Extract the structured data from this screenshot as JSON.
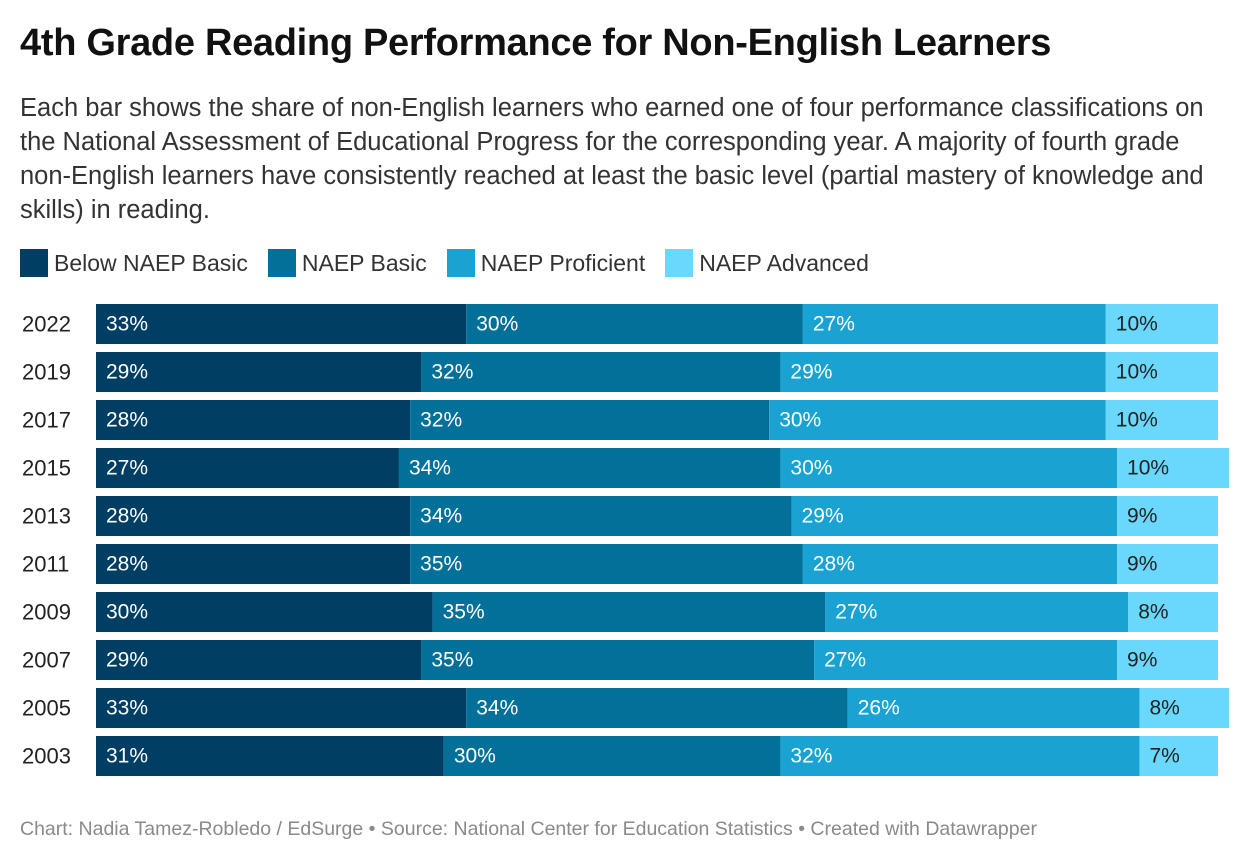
{
  "title": "4th Grade Reading Performance for Non-English Learners",
  "subtitle": "Each bar shows the share of non-English learners who earned one of four performance classifications on the National Assessment of Educational Progress for the corresponding year. A majority of fourth grade non-English learners have consistently reached at least the basic level (partial mastery of knowledge and skills) in reading.",
  "footer": "Chart: Nadia Tamez-Robledo / EdSurge • Source: National Center for Education Statistics • Created with Datawrapper",
  "chart_data": {
    "type": "bar",
    "orientation": "horizontal",
    "stacked": true,
    "normalized": true,
    "title": "4th Grade Reading Performance for Non-English Learners",
    "legend_position": "top-left",
    "grid": false,
    "xlim": [
      0,
      100
    ],
    "categories": [
      "2022",
      "2019",
      "2017",
      "2015",
      "2013",
      "2011",
      "2009",
      "2007",
      "2005",
      "2003"
    ],
    "series": [
      {
        "name": "Below NAEP Basic",
        "color": "#003f63",
        "label_color": "#ffffff",
        "values": [
          33,
          29,
          28,
          27,
          28,
          28,
          30,
          29,
          33,
          31
        ]
      },
      {
        "name": "NAEP Basic",
        "color": "#03709a",
        "label_color": "#ffffff",
        "values": [
          30,
          32,
          32,
          34,
          34,
          35,
          35,
          35,
          34,
          30
        ]
      },
      {
        "name": "NAEP Proficient",
        "color": "#1aa3d2",
        "label_color": "#ffffff",
        "values": [
          27,
          29,
          30,
          30,
          29,
          28,
          27,
          27,
          26,
          32
        ]
      },
      {
        "name": "NAEP Advanced",
        "color": "#6ad8fd",
        "label_color": "#222222",
        "values": [
          10,
          10,
          10,
          10,
          9,
          9,
          8,
          9,
          8,
          7
        ]
      }
    ],
    "value_suffix": "%"
  }
}
